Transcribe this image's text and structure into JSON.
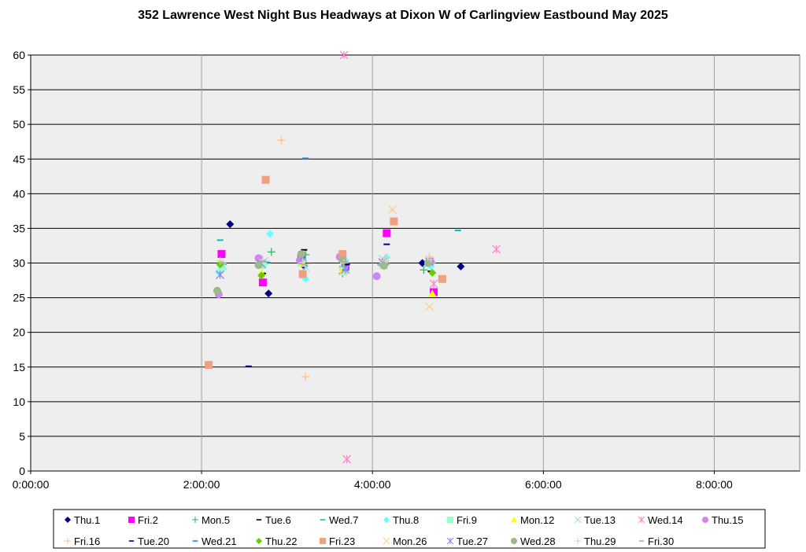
{
  "chart_data": {
    "type": "scatter",
    "title": "352 Lawrence West Night Bus Headways at Dixon W of Carlingview Eastbound May 2025",
    "xlabel": "",
    "ylabel": "",
    "xlim": [
      0,
      540
    ],
    "ylim": [
      0,
      60
    ],
    "x_ticks": [
      {
        "value": 0,
        "label": "0:00:00"
      },
      {
        "value": 120,
        "label": "2:00:00"
      },
      {
        "value": 240,
        "label": "4:00:00"
      },
      {
        "value": 360,
        "label": "6:00:00"
      },
      {
        "value": 480,
        "label": "8:00:00"
      }
    ],
    "y_ticks": [
      0,
      5,
      10,
      15,
      20,
      25,
      30,
      35,
      40,
      45,
      50,
      55,
      60
    ],
    "grid": true,
    "plot_background": "#eeeeee",
    "legend_position": "bottom",
    "series": [
      {
        "name": "Thu.1",
        "marker": "diamond",
        "color": "#000080",
        "points": [
          [
            140,
            35.6
          ],
          [
            167,
            25.6
          ],
          [
            192,
            29.6
          ],
          [
            247,
            29.8
          ],
          [
            275,
            30.0
          ],
          [
            302,
            29.5
          ]
        ]
      },
      {
        "name": "Fri.2",
        "marker": "square",
        "color": "#ff00ff",
        "points": [
          [
            134,
            31.3
          ],
          [
            163,
            27.2
          ],
          [
            190,
            30.8
          ],
          [
            221,
            29.5
          ],
          [
            250,
            34.3
          ],
          [
            283,
            25.8
          ]
        ]
      },
      {
        "name": "Mon.5",
        "marker": "plus",
        "color": "#3cb371",
        "points": [
          [
            135,
            29.8
          ],
          [
            169,
            31.6
          ],
          [
            193,
            31.2
          ],
          [
            219,
            28.5
          ],
          [
            246,
            29.8
          ],
          [
            276,
            29.0
          ]
        ]
      },
      {
        "name": "Tue.6",
        "marker": "dash",
        "color": "#000000",
        "points": [
          [
            134,
            30.0
          ],
          [
            163,
            28.5
          ],
          [
            192,
            31.9
          ],
          [
            221,
            29.8
          ],
          [
            248,
            29.8
          ],
          [
            281,
            28.8
          ]
        ]
      },
      {
        "name": "Wed.7",
        "marker": "dash",
        "color": "#00bfbf",
        "points": [
          [
            133,
            33.3
          ],
          [
            166,
            30.1
          ],
          [
            191,
            30.6
          ],
          [
            219,
            29.5
          ],
          [
            249,
            30.2
          ],
          [
            300,
            34.7
          ]
        ]
      },
      {
        "name": "Thu.8",
        "marker": "diamond",
        "color": "#66ffff",
        "points": [
          [
            132,
            28.7
          ],
          [
            168,
            34.2
          ],
          [
            193,
            27.7
          ],
          [
            221,
            30.4
          ],
          [
            250,
            30.8
          ],
          [
            281,
            29.5
          ]
        ]
      },
      {
        "name": "Fri.9",
        "marker": "square",
        "color": "#99ffcc",
        "points": [
          [
            134,
            29.4
          ],
          [
            163,
            29.7
          ],
          [
            190,
            30.1
          ],
          [
            220,
            28.8
          ],
          [
            248,
            30.0
          ],
          [
            280,
            30.1
          ]
        ]
      },
      {
        "name": "Mon.12",
        "marker": "triangle",
        "color": "#ffff00",
        "points": [
          [
            133,
            30.1
          ],
          [
            162,
            28.6
          ],
          [
            191,
            29.9
          ],
          [
            219,
            29.1
          ],
          [
            247,
            30.1
          ],
          [
            282,
            25.6
          ]
        ]
      },
      {
        "name": "Tue.13",
        "marker": "x",
        "color": "#9ad8ff",
        "points": [
          [
            135,
            29.6
          ],
          [
            164,
            30.3
          ],
          [
            193,
            29.4
          ],
          [
            220,
            29.0
          ],
          [
            247,
            30.6
          ],
          [
            279,
            29.9
          ]
        ]
      },
      {
        "name": "Wed.14",
        "marker": "star",
        "color": "#ff88cc",
        "points": [
          [
            220,
            60.0
          ],
          [
            222,
            1.7
          ],
          [
            283,
            27.0
          ],
          [
            327,
            32.0
          ]
        ]
      },
      {
        "name": "Thu.15",
        "marker": "circle",
        "color": "#cc88ee",
        "points": [
          [
            132,
            25.5
          ],
          [
            160,
            30.7
          ],
          [
            189,
            30.4
          ],
          [
            217,
            30.9
          ],
          [
            243,
            28.1
          ],
          [
            281,
            30.2
          ]
        ]
      },
      {
        "name": "Fri.16",
        "marker": "plus",
        "color": "#ffc08a",
        "points": [
          [
            176,
            47.7
          ],
          [
            193,
            13.6
          ],
          [
            220,
            30.2
          ],
          [
            249,
            30.7
          ],
          [
            280,
            30.9
          ]
        ]
      },
      {
        "name": "Tue.20",
        "marker": "dash",
        "color": "#000080",
        "points": [
          [
            153,
            15.1
          ],
          [
            222,
            29.8
          ],
          [
            250,
            32.7
          ]
        ]
      },
      {
        "name": "Wed.21",
        "marker": "dash",
        "color": "#2f7fd8",
        "points": [
          [
            193,
            45.1
          ],
          [
            221,
            29.0
          ],
          [
            249,
            29.8
          ]
        ]
      },
      {
        "name": "Thu.22",
        "marker": "diamond",
        "color": "#66cc00",
        "points": [
          [
            133,
            29.8
          ],
          [
            162,
            28.2
          ],
          [
            191,
            31.3
          ],
          [
            219,
            30.2
          ],
          [
            248,
            29.8
          ],
          [
            282,
            28.6
          ]
        ]
      },
      {
        "name": "Fri.23",
        "marker": "square",
        "color": "#f0a080",
        "points": [
          [
            125,
            15.3
          ],
          [
            165,
            42.0
          ],
          [
            191,
            28.4
          ],
          [
            219,
            31.3
          ],
          [
            255,
            36.0
          ],
          [
            289,
            27.7
          ]
        ]
      },
      {
        "name": "Mon.26",
        "marker": "x",
        "color": "#ffcc88",
        "points": [
          [
            254,
            37.7
          ],
          [
            280,
            23.7
          ],
          [
            248,
            29.7
          ],
          [
            219,
            28.7
          ]
        ]
      },
      {
        "name": "Tue.27",
        "marker": "star",
        "color": "#8888ee",
        "points": [
          [
            133,
            28.3
          ],
          [
            162,
            29.9
          ],
          [
            191,
            30.8
          ],
          [
            221,
            29.1
          ],
          [
            247,
            30.1
          ],
          [
            280,
            30.2
          ]
        ]
      },
      {
        "name": "Wed.28",
        "marker": "circle",
        "color": "#99bb88",
        "points": [
          [
            131,
            26.0
          ],
          [
            160,
            29.7
          ],
          [
            190,
            31.3
          ],
          [
            219,
            30.4
          ],
          [
            248,
            29.6
          ],
          [
            279,
            30.0
          ]
        ]
      },
      {
        "name": "Thu.29",
        "marker": "plus",
        "color": "#d0d0d0",
        "points": [
          [
            133,
            30.3
          ],
          [
            163,
            30.5
          ],
          [
            191,
            30.1
          ],
          [
            220,
            30.0
          ],
          [
            249,
            30.3
          ],
          [
            281,
            30.5
          ]
        ]
      },
      {
        "name": "Fri.30",
        "marker": "dash",
        "color": "#aaaaaa",
        "points": [
          [
            135,
            30.0
          ],
          [
            164,
            30.2
          ],
          [
            192,
            29.8
          ],
          [
            221,
            30.1
          ],
          [
            250,
            29.9
          ],
          [
            282,
            30.0
          ]
        ]
      }
    ]
  }
}
